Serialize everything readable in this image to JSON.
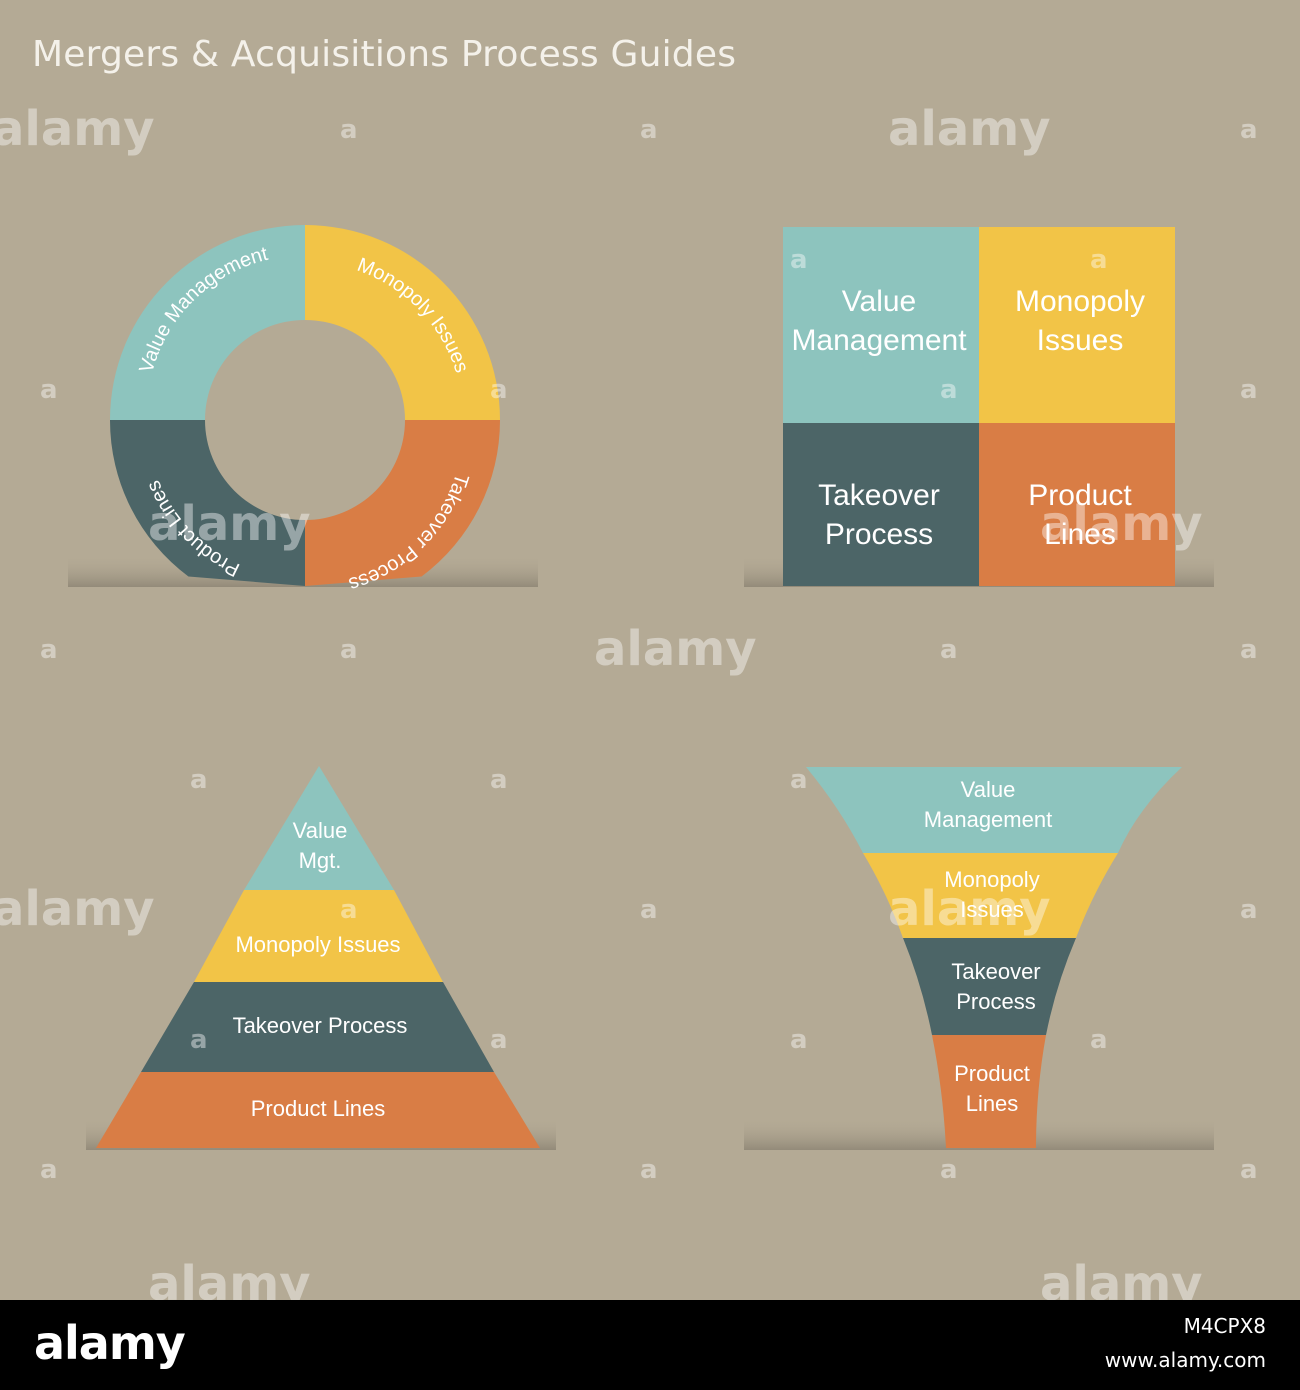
{
  "title": "Mergers & Acquisitions Process Guides",
  "colors": {
    "background": "#b4aa95",
    "value_management": "#8dc4be",
    "monopoly_issues": "#f2c447",
    "takeover_process": "#4c6567",
    "product_lines": "#d97d45",
    "shelf": "#9d9483"
  },
  "ring": {
    "value_management": "Value Management",
    "monopoly_issues": "Monopoly Issues",
    "takeover_process": "Takeover Process",
    "product_lines": "Product Lines"
  },
  "grid": {
    "value_line1": "Value",
    "value_line2": "Management",
    "monopoly_line1": "Monopoly",
    "monopoly_line2": "Issues",
    "takeover_line1": "Takeover",
    "takeover_line2": "Process",
    "product_line1": "Product",
    "product_line2": "Lines"
  },
  "pyramid": {
    "value_line1": "Value",
    "value_line2": "Mgt.",
    "monopoly": "Monopoly Issues",
    "takeover": "Takeover Process",
    "product": "Product Lines"
  },
  "funnel": {
    "value_line1": "Value",
    "value_line2": "Management",
    "monopoly_line1": "Monopoly",
    "monopoly_line2": "Issues",
    "takeover_line1": "Takeover",
    "takeover_line2": "Process",
    "product_line1": "Product",
    "product_line2": "Lines"
  },
  "watermark": {
    "word": "alamy",
    "letter": "a"
  },
  "footer": {
    "logo": "alamy",
    "image_id": "M4CPX8",
    "url": "www.alamy.com"
  }
}
